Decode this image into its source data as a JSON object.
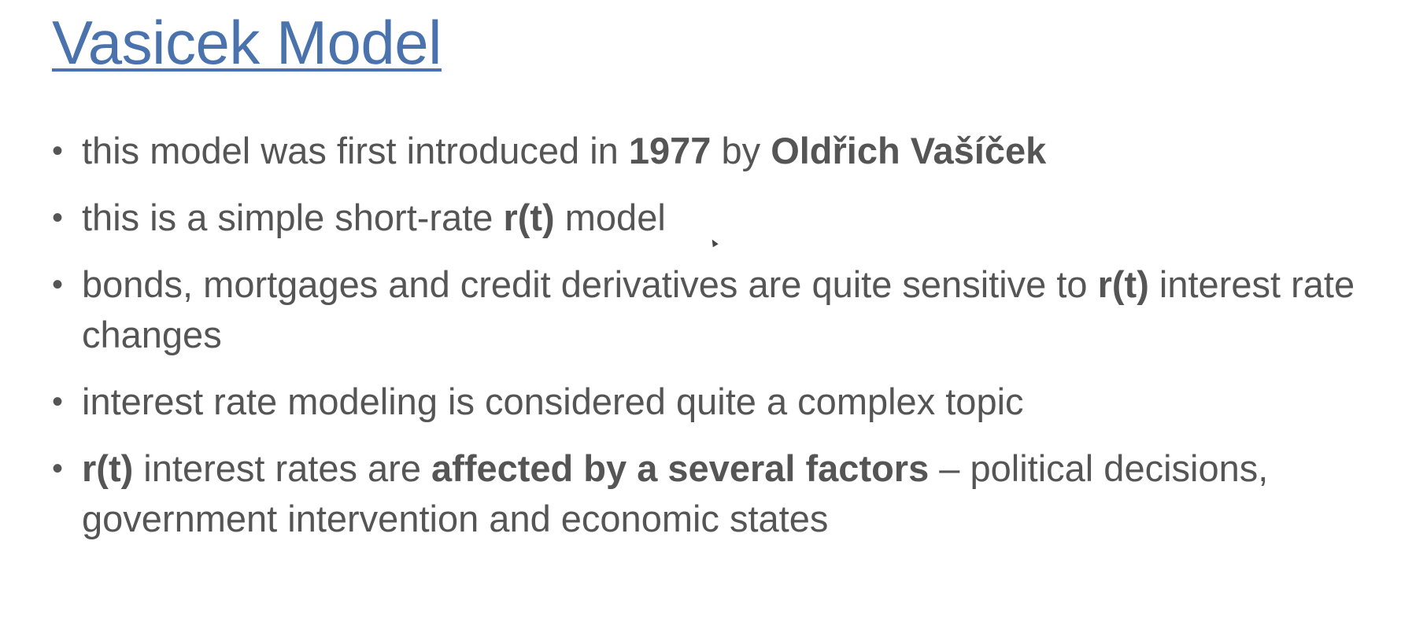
{
  "title": "Vasicek Model",
  "bullet_symbol": "•",
  "bullets": [
    {
      "segments": [
        {
          "text": "this model was first introduced in ",
          "bold": false
        },
        {
          "text": "1977",
          "bold": true
        },
        {
          "text": " by ",
          "bold": false
        },
        {
          "text": "Oldřich Vašíček",
          "bold": true
        }
      ]
    },
    {
      "segments": [
        {
          "text": "this is a simple short-rate ",
          "bold": false
        },
        {
          "text": "r(t)",
          "bold": true
        },
        {
          "text": " model",
          "bold": false
        }
      ]
    },
    {
      "segments": [
        {
          "text": "bonds, mortgages and credit derivatives are quite sensitive to ",
          "bold": false
        },
        {
          "text": "r(t)",
          "bold": true
        },
        {
          "text": " interest rate changes",
          "bold": false
        }
      ]
    },
    {
      "segments": [
        {
          "text": "interest rate modeling is considered quite a complex topic",
          "bold": false
        }
      ]
    },
    {
      "segments": [
        {
          "text": "r(t)",
          "bold": true
        },
        {
          "text": " interest rates are ",
          "bold": false
        },
        {
          "text": "affected by a several factors",
          "bold": true
        },
        {
          "text": " – political decisions, government intervention and economic states",
          "bold": false
        }
      ]
    }
  ],
  "colors": {
    "title": "#4a72ad",
    "body_text": "#555555",
    "background": "#ffffff"
  }
}
